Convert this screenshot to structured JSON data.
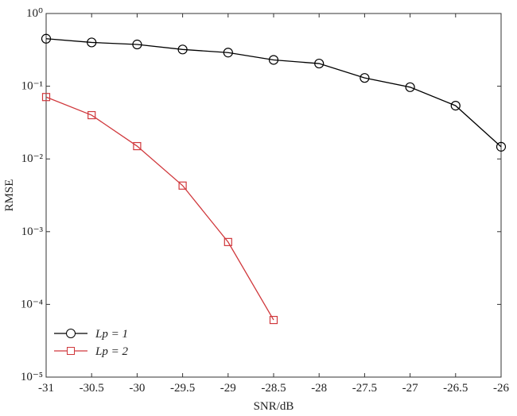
{
  "chart_data": {
    "type": "line",
    "xlabel": "SNR/dB",
    "ylabel": "RMSE",
    "x": [
      -31,
      -30.5,
      -30,
      -29.5,
      -29,
      -28.5,
      -28,
      -27.5,
      -27,
      -26.5,
      -26
    ],
    "series": [
      {
        "name": "Lp = 1",
        "color": "#000000",
        "marker": "circle",
        "values": [
          0.45,
          0.4,
          0.375,
          0.32,
          0.29,
          0.23,
          0.205,
          0.13,
          0.097,
          0.054,
          0.0147
        ]
      },
      {
        "name": "Lp = 2",
        "color": "#d0383c",
        "marker": "square",
        "values": [
          0.071,
          0.04,
          0.015,
          0.0043,
          0.00072,
          6.1e-05,
          null,
          null,
          null,
          null,
          null
        ]
      }
    ],
    "xlim": [
      -31,
      -26
    ],
    "xticks": [
      -31,
      -30.5,
      -30,
      -29.5,
      -29,
      -28.5,
      -28,
      -27.5,
      -27,
      -26.5,
      -26
    ],
    "ylim": [
      1e-05,
      1
    ],
    "yscale": "log",
    "yticks": [
      {
        "value": 1e-05,
        "label": "10⁻⁵"
      },
      {
        "value": 0.0001,
        "label": "10⁻⁴"
      },
      {
        "value": 0.001,
        "label": "10⁻³"
      },
      {
        "value": 0.01,
        "label": "10⁻²"
      },
      {
        "value": 0.1,
        "label": "10⁻¹"
      },
      {
        "value": 1,
        "label": "10⁰"
      }
    ],
    "legend": "lower left",
    "grid": false
  }
}
